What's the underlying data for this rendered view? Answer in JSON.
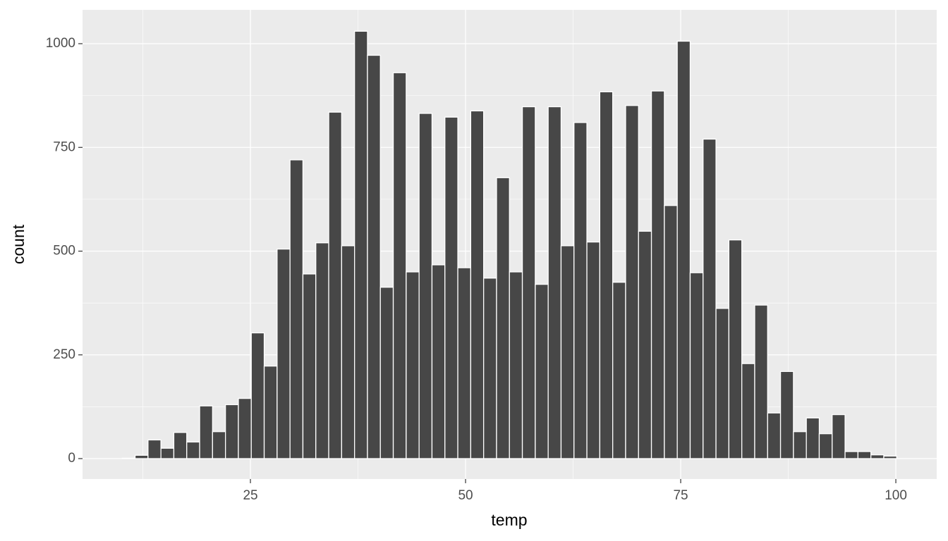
{
  "chart_data": {
    "type": "histogram",
    "x_label": "temp",
    "y_label": "count",
    "bins": [
      10.1,
      11.6,
      13.1,
      14.6,
      16.1,
      17.6,
      19.1,
      20.6,
      22.1,
      23.6,
      25.1,
      26.6,
      28.1,
      29.6,
      31.1,
      32.6,
      34.1,
      35.6,
      37.1,
      38.6,
      40.1,
      41.6,
      43.1,
      44.6,
      46.1,
      47.6,
      49.1,
      50.6,
      52.1,
      53.6,
      55.1,
      56.6,
      58.1,
      59.6,
      61.1,
      62.6,
      64.1,
      65.6,
      67.1,
      68.6,
      70.1,
      71.6,
      73.1,
      74.6,
      76.1,
      77.6,
      79.1,
      80.6,
      82.1,
      83.6,
      85.1,
      86.6,
      88.1,
      89.6,
      91.1,
      92.6,
      94.1,
      95.6,
      97.1,
      98.6,
      100.1
    ],
    "values": [
      1,
      8,
      45,
      25,
      63,
      40,
      127,
      65,
      130,
      145,
      303,
      223,
      505,
      720,
      445,
      520,
      835,
      513,
      1030,
      972,
      413,
      930,
      450,
      832,
      467,
      823,
      460,
      838,
      435,
      677,
      450,
      848,
      420,
      848,
      513,
      810,
      522,
      884,
      425,
      851,
      548,
      886,
      610,
      1006,
      448,
      770,
      362,
      527,
      229,
      370,
      110,
      210,
      65,
      98,
      60,
      106,
      17,
      17,
      9,
      6
    ],
    "color": "#474747",
    "edge_color": "#ffffff",
    "xlim": [
      5.49,
      104.75
    ],
    "xticks": [
      25,
      50,
      75,
      100
    ],
    "ylim": [
      -49.2,
      1081.5
    ],
    "yticks": [
      0,
      250,
      500,
      750,
      1000
    ],
    "grid": true,
    "minor_grid": true
  }
}
